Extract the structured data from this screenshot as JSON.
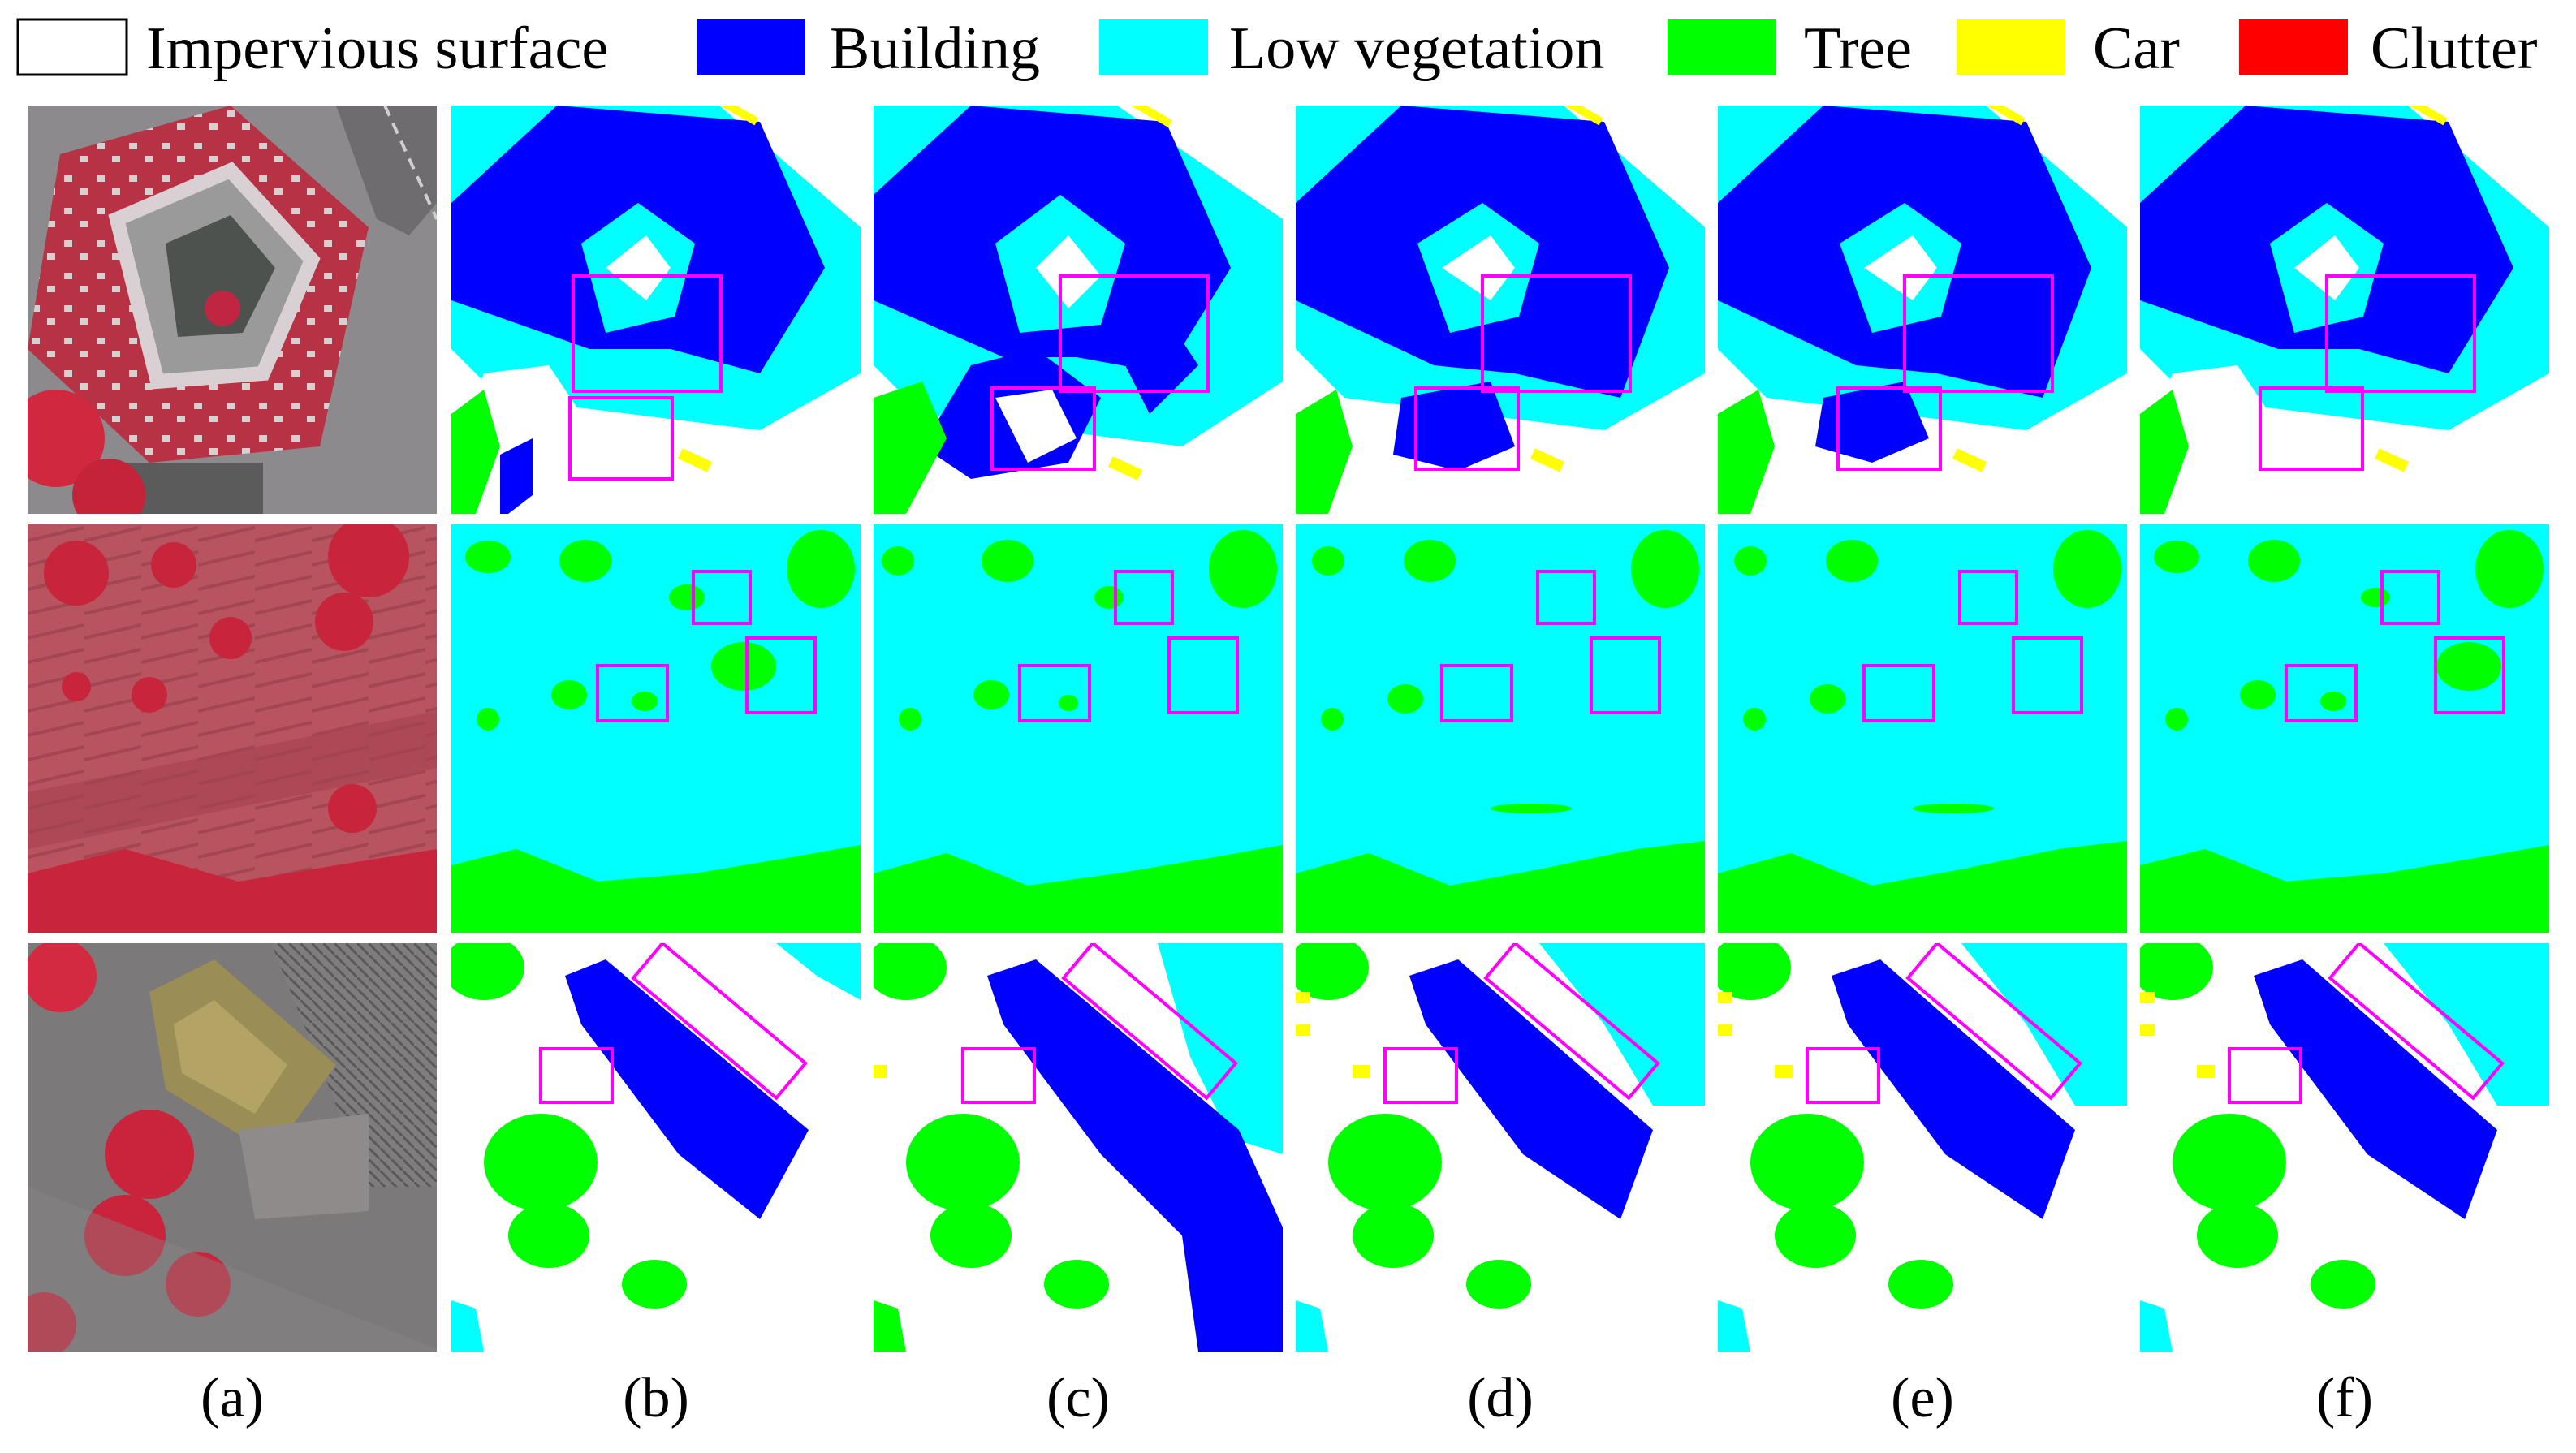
{
  "legend": [
    {
      "name": "Impervious surface",
      "color": "#ffffff"
    },
    {
      "name": "Building",
      "color": "#0000ff"
    },
    {
      "name": "Low vegetation",
      "color": "#00ffff"
    },
    {
      "name": "Tree",
      "color": "#00ff00"
    },
    {
      "name": "Car",
      "color": "#ffff00"
    },
    {
      "name": "Clutter",
      "color": "#ff0000"
    }
  ],
  "columns": [
    "(a)",
    "(b)",
    "(c)",
    "(d)",
    "(e)",
    "(f)"
  ],
  "highlight_color": "#ff00ff"
}
